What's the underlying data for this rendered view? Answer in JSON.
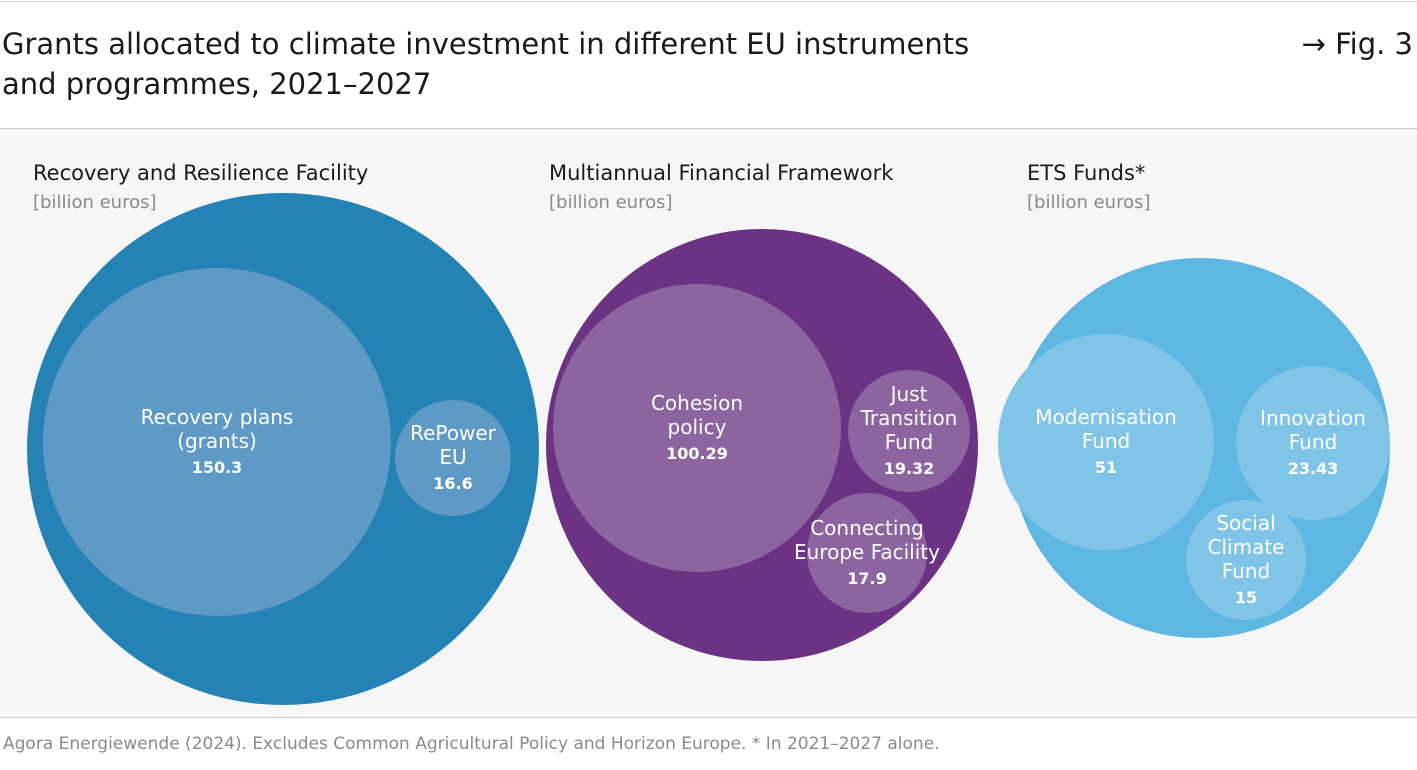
{
  "header": {
    "title_line1": "Grants allocated to climate investment in different EU instruments",
    "title_line2": "and programmes, 2021–2027",
    "fig_ref": "→ Fig. 3"
  },
  "footer": {
    "source": "Agora Energiewende (2024). Excludes Common Agricultural Policy and Horizon Europe. * In 2021–2027 alone."
  },
  "colors": {
    "rrf_outer": "#2482b5",
    "rrf_inner": "#5f9ac7",
    "mff_outer": "#6c3283",
    "mff_inner": "#8c64a0",
    "ets_outer": "#5eb6e2",
    "ets_inner": "#80c4e8"
  },
  "chart_data": [
    {
      "type": "bubble",
      "title": "Recovery and Resilience Facility",
      "unit": "[billion euros]",
      "series": [
        {
          "label_lines": [
            "Recovery plans",
            "(grants)"
          ],
          "value": 150.3,
          "value_label": "150.3"
        },
        {
          "label_lines": [
            "RePower",
            "EU"
          ],
          "value": 16.6,
          "value_label": "16.6"
        }
      ]
    },
    {
      "type": "bubble",
      "title": "Multiannual Financial Framework",
      "unit": "[billion euros]",
      "series": [
        {
          "label_lines": [
            "Cohesion",
            "policy"
          ],
          "value": 100.29,
          "value_label": "100.29"
        },
        {
          "label_lines": [
            "Just",
            "Transition",
            "Fund"
          ],
          "value": 19.32,
          "value_label": "19.32"
        },
        {
          "label_lines": [
            "Connecting",
            "Europe Facility"
          ],
          "value": 17.9,
          "value_label": "17.9"
        }
      ]
    },
    {
      "type": "bubble",
      "title": "ETS Funds*",
      "unit": "[billion euros]",
      "series": [
        {
          "label_lines": [
            "Modernisation",
            "Fund"
          ],
          "value": 51,
          "value_label": "51"
        },
        {
          "label_lines": [
            "Innovation",
            "Fund"
          ],
          "value": 23.43,
          "value_label": "23.43"
        },
        {
          "label_lines": [
            "Social",
            "Climate",
            "Fund"
          ],
          "value": 15,
          "value_label": "15"
        }
      ]
    }
  ]
}
